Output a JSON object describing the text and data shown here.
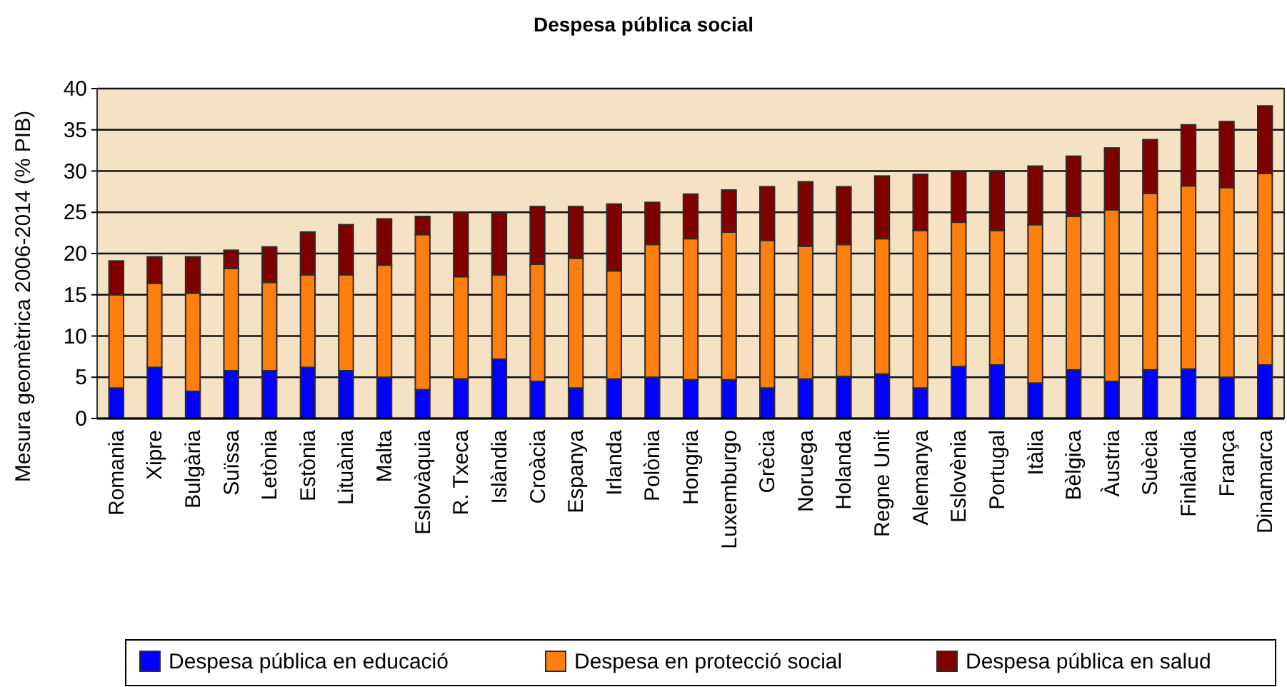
{
  "chart_data": {
    "type": "bar",
    "title": "Despesa pública social",
    "ylabel": "Mesura geomètrica 2006-2014 (% PIB)",
    "stacked": true,
    "grid": "y",
    "legend": "bottom",
    "categories": [
      "Romania",
      "Xipre",
      "Bulgària",
      "Suïssa",
      "Letònia",
      "Estònia",
      "Lituània",
      "Malta",
      "Eslovàquia",
      "R. Txeca",
      "Islàndia",
      "Croàcia",
      "Espanya",
      "Irlanda",
      "Polònia",
      "Hongria",
      "Luxemburgo",
      "Grècia",
      "Noruega",
      "Holanda",
      "Regne Unit",
      "Alemanya",
      "Eslovènia",
      "Portugal",
      "Itàlia",
      "Bèlgica",
      "Àustria",
      "Suècia",
      "Finlàndia",
      "França",
      "Dinamarca"
    ],
    "ylim": [
      0,
      40
    ],
    "yticks": [
      0,
      5,
      10,
      15,
      20,
      25,
      30,
      35,
      40
    ],
    "series": [
      {
        "name": "Despesa pública en educació",
        "color": "#0000ff",
        "values": [
          3.7,
          6.2,
          3.3,
          5.8,
          5.8,
          6.2,
          5.8,
          5.0,
          3.5,
          4.8,
          7.2,
          4.5,
          3.7,
          4.8,
          5.0,
          4.7,
          4.7,
          3.7,
          4.8,
          5.1,
          5.4,
          3.7,
          6.3,
          6.5,
          4.3,
          5.9,
          4.5,
          5.9,
          6.0,
          5.0,
          6.5
        ]
      },
      {
        "name": "Despesa en protecció social",
        "color": "#ff7f0e",
        "values": [
          11.3,
          10.2,
          11.9,
          12.4,
          10.7,
          11.2,
          11.6,
          13.6,
          18.8,
          12.4,
          10.2,
          14.2,
          15.7,
          13.1,
          16.1,
          17.1,
          17.9,
          17.9,
          16.1,
          16.0,
          16.4,
          19.1,
          17.5,
          16.3,
          19.2,
          18.6,
          20.8,
          21.4,
          22.2,
          23.0,
          23.2
        ]
      },
      {
        "name": "Despesa pública en salud",
        "color": "#800000",
        "values": [
          4.1,
          3.2,
          4.4,
          2.2,
          4.3,
          5.2,
          6.1,
          5.6,
          2.2,
          7.8,
          7.5,
          7.0,
          6.3,
          8.1,
          5.1,
          5.4,
          5.1,
          6.5,
          7.8,
          7.0,
          7.6,
          6.8,
          6.1,
          7.1,
          7.1,
          7.3,
          7.5,
          6.5,
          7.4,
          8.0,
          8.2
        ]
      }
    ]
  }
}
